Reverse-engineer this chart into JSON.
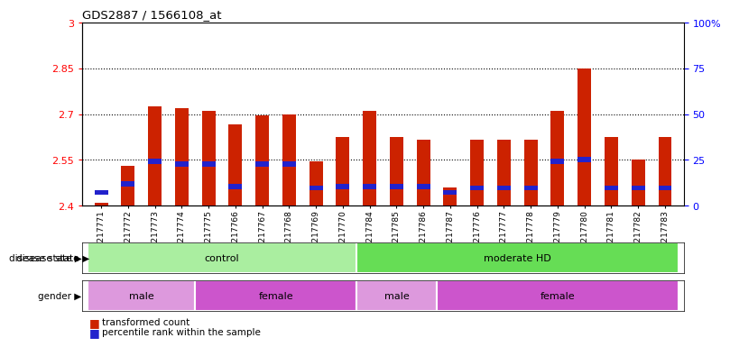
{
  "title": "GDS2887 / 1566108_at",
  "samples": [
    "GSM217771",
    "GSM217772",
    "GSM217773",
    "GSM217774",
    "GSM217775",
    "GSM217766",
    "GSM217767",
    "GSM217768",
    "GSM217769",
    "GSM217770",
    "GSM217784",
    "GSM217785",
    "GSM217786",
    "GSM217787",
    "GSM217776",
    "GSM217777",
    "GSM217778",
    "GSM217779",
    "GSM217780",
    "GSM217781",
    "GSM217782",
    "GSM217783"
  ],
  "transformed_count": [
    2.41,
    2.53,
    2.725,
    2.72,
    2.71,
    2.665,
    2.695,
    2.7,
    2.545,
    2.625,
    2.71,
    2.625,
    2.615,
    2.46,
    2.615,
    2.615,
    2.615,
    2.71,
    2.85,
    2.625,
    2.55,
    2.625
  ],
  "percentile_rank": [
    2.443,
    2.472,
    2.546,
    2.537,
    2.537,
    2.463,
    2.537,
    2.537,
    2.458,
    2.463,
    2.463,
    2.463,
    2.463,
    2.443,
    2.458,
    2.458,
    2.458,
    2.546,
    2.551,
    2.458,
    2.458,
    2.458
  ],
  "ylim_left": [
    2.4,
    3.0
  ],
  "ylim_right": [
    0,
    100
  ],
  "yticks_left": [
    2.4,
    2.55,
    2.7,
    2.85,
    3.0
  ],
  "yticks_right": [
    0,
    25,
    50,
    75,
    100
  ],
  "ytick_labels_left": [
    "2.4",
    "2.55",
    "2.7",
    "2.85",
    "3"
  ],
  "ytick_labels_right": [
    "0",
    "25",
    "50",
    "75",
    "100%"
  ],
  "dotted_lines": [
    2.55,
    2.7,
    2.85
  ],
  "bar_color": "#cc2200",
  "percentile_color": "#2222cc",
  "bg_color": "#ffffff",
  "bar_width": 0.5,
  "groups": {
    "disease_state": [
      {
        "label": "control",
        "start": 0,
        "end": 9,
        "color": "#aaeea0"
      },
      {
        "label": "moderate HD",
        "start": 10,
        "end": 21,
        "color": "#66dd55"
      }
    ],
    "gender": [
      {
        "label": "male",
        "start": 0,
        "end": 3,
        "color": "#dd99dd"
      },
      {
        "label": "female",
        "start": 4,
        "end": 9,
        "color": "#cc55cc"
      },
      {
        "label": "male",
        "start": 10,
        "end": 12,
        "color": "#dd99dd"
      },
      {
        "label": "female",
        "start": 13,
        "end": 21,
        "color": "#cc55cc"
      }
    ]
  },
  "legend": [
    {
      "label": "transformed count",
      "color": "#cc2200"
    },
    {
      "label": "percentile rank within the sample",
      "color": "#2222cc"
    }
  ]
}
